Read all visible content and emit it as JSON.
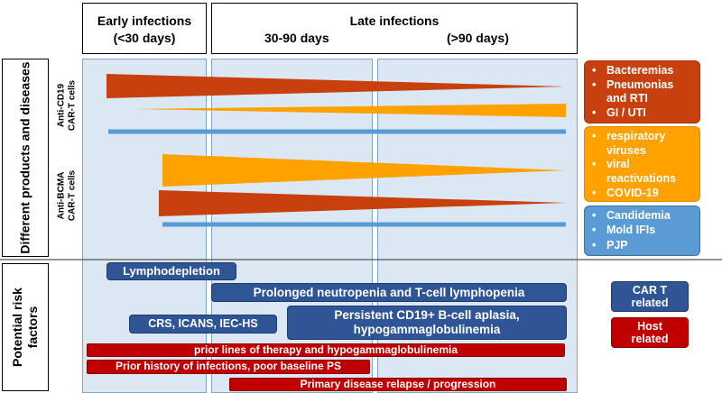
{
  "headers": {
    "early": "Early infections",
    "early_sub": "(<30 days)",
    "late": "Late infections",
    "late_sub1": "30-90 days",
    "late_sub2": "(>90 days)"
  },
  "side_labels": {
    "top": "Different products and diseases",
    "bottom": "Potential risk factors"
  },
  "products": {
    "cd19_line1": "Anti-CD19",
    "cd19_line2": "CAR-T cells",
    "bcma_line1": "Anti-BCMA",
    "bcma_line2": "CAR-T cells"
  },
  "legend": {
    "bacterial": [
      "Bacteremias",
      "Pneumonias and RTI",
      "GI / UTI"
    ],
    "viral": [
      "respiratory viruses",
      "viral reactivations",
      "COVID-19"
    ],
    "fungal": [
      "Candidemia",
      "Mold IFIs",
      "PJP"
    ]
  },
  "risk_factors": {
    "lymphodepletion": "Lymphodepletion",
    "neutropenia": "Prolonged neutropenia and T-cell lymphopenia",
    "crs": "CRS, ICANS, IEC-HS",
    "aplasia_line1": "Persistent CD19+ B-cell aplasia,",
    "aplasia_line2": "hypogammaglobulinemia",
    "prior_lines": "prior lines of therapy and hypogammaglobulinemia",
    "prior_history": "Prior history of infections, poor baseline PS",
    "relapse": "Primary disease relapse / progression"
  },
  "risk_legend": {
    "cart_line1": "CAR T",
    "cart_line2": "related",
    "host_line1": "Host",
    "host_line2": "related"
  },
  "colors": {
    "bacterial": "#c9400f",
    "viral": "#ffa200",
    "fungal": "#5b9bd5",
    "car_t": "#2f5597",
    "host": "#c00000"
  }
}
